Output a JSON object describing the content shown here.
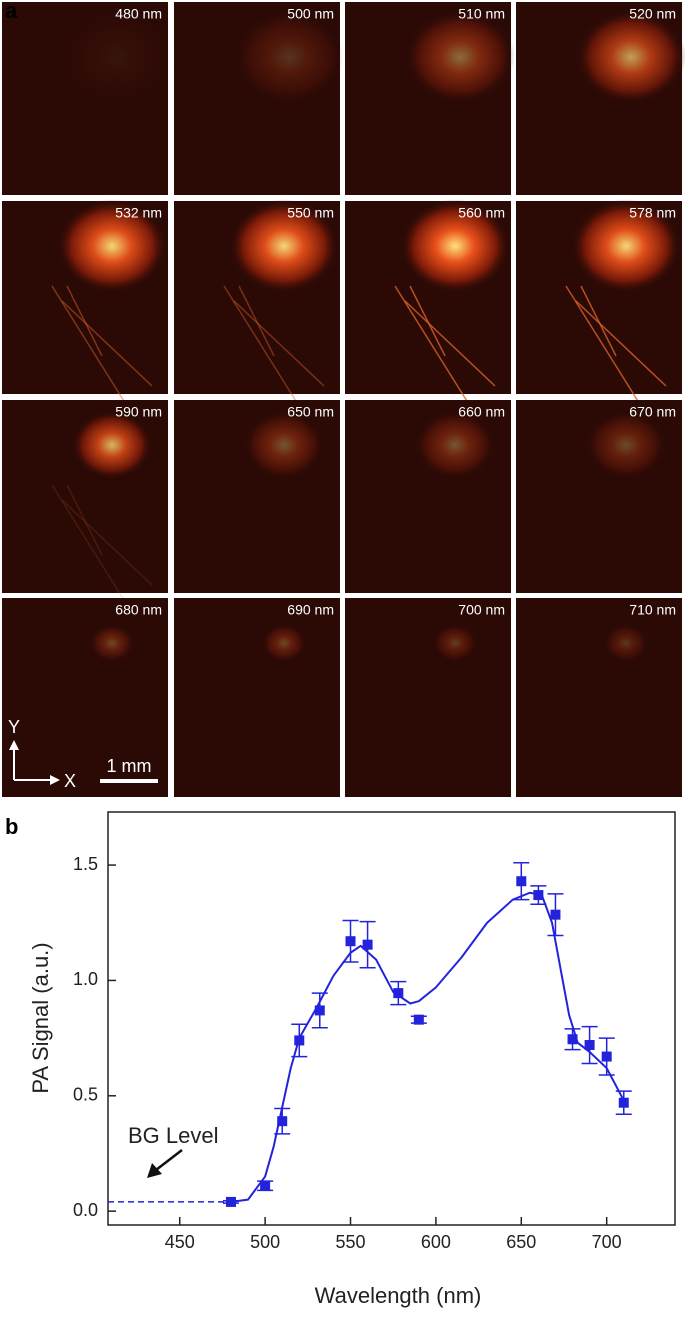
{
  "panel_a": {
    "label": "a",
    "tiles": [
      "480 nm",
      "500 nm",
      "510 nm",
      "520 nm",
      "532 nm",
      "550 nm",
      "560 nm",
      "578 nm",
      "590 nm",
      "650 nm",
      "660 nm",
      "670 nm",
      "680 nm",
      "690 nm",
      "700 nm",
      "710 nm"
    ],
    "axis_y": "Y",
    "axis_x": "X",
    "scale_bar": "1 mm"
  },
  "chart_data": {
    "type": "scatter",
    "panel_label": "b",
    "x_label": "Wavelength (nm)",
    "y_label": "PA Signal (a.u.)",
    "xlim": [
      408,
      740
    ],
    "xticks": [
      450,
      500,
      550,
      600,
      650,
      700
    ],
    "ylim": [
      -0.06,
      1.73
    ],
    "yticks": [
      {
        "value": 0,
        "label": "0.0"
      },
      0.5,
      {
        "value": 1,
        "label": "1.0"
      },
      1.5
    ],
    "series": [
      {
        "color": "#2323dc",
        "x": [
          480,
          500,
          510,
          520,
          532,
          550,
          560,
          578,
          590,
          650,
          660,
          670,
          680,
          690,
          700,
          710
        ],
        "values": [
          0.04,
          0.11,
          0.39,
          0.74,
          0.87,
          1.17,
          1.155,
          0.945,
          0.83,
          1.43,
          1.37,
          1.285,
          0.745,
          0.72,
          0.67,
          0.47
        ],
        "errors": [
          0.005,
          0.02,
          0.055,
          0.07,
          0.075,
          0.09,
          0.1,
          0.05,
          0.015,
          0.08,
          0.04,
          0.09,
          0.045,
          0.08,
          0.08,
          0.05
        ]
      },
      {
        "color": "#2323dc",
        "x": [
          480,
          490,
          500,
          505,
          510,
          515,
          520,
          530,
          540,
          550,
          556,
          565,
          575,
          585,
          590,
          600,
          615,
          630,
          645,
          655,
          662,
          668,
          673,
          678,
          683,
          690,
          700,
          710
        ],
        "values": [
          0.04,
          0.05,
          0.15,
          0.28,
          0.45,
          0.62,
          0.75,
          0.88,
          1.02,
          1.12,
          1.15,
          1.09,
          0.95,
          0.9,
          0.91,
          0.97,
          1.1,
          1.25,
          1.35,
          1.38,
          1.37,
          1.25,
          1.05,
          0.85,
          0.73,
          0.69,
          0.62,
          0.48
        ]
      }
    ],
    "bg_level": 0.04,
    "annotation": "BG Level"
  }
}
